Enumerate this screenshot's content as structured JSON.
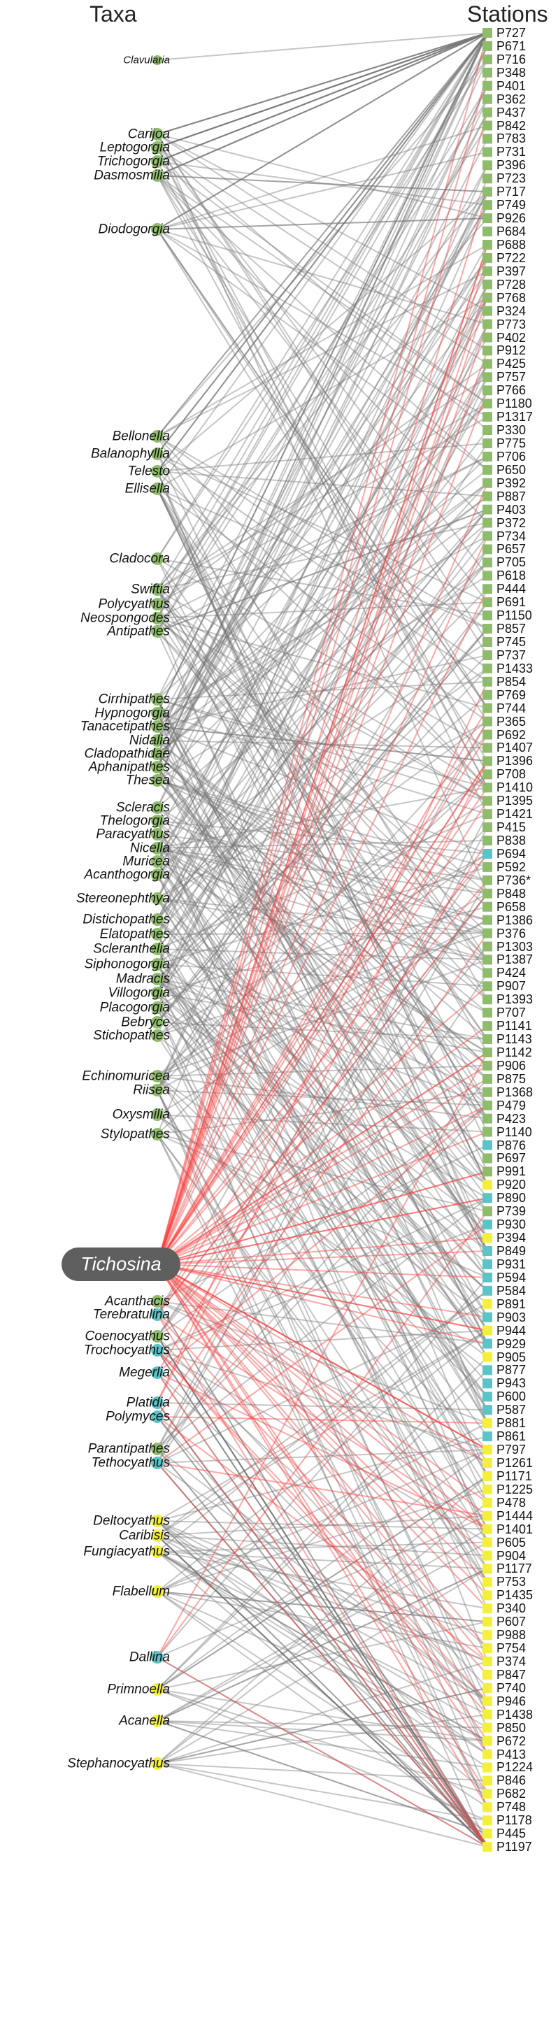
{
  "headers": {
    "taxa": "Taxa",
    "stations": "Stations"
  },
  "colors": {
    "green": "#8fbc6b",
    "cyan": "#5bc4c8",
    "yellow": "#f3f03a",
    "edge_gray": "#777777",
    "edge_red": "#ff3b3b",
    "highlight_pill": "#5f5f5f"
  },
  "highlighted_taxon": "Tichosina",
  "taxa": [
    {
      "name": "Clavularia",
      "color": "green"
    },
    {
      "name": "Carijoa",
      "color": "green"
    },
    {
      "name": "Leptogorgia",
      "color": "green"
    },
    {
      "name": "Trichogorgia",
      "color": "green"
    },
    {
      "name": "Dasmosmilia",
      "color": "green"
    },
    {
      "name": "Diodogorgia",
      "color": "green"
    },
    {
      "name": "Bellonella",
      "color": "green"
    },
    {
      "name": "Balanophyllia",
      "color": "green"
    },
    {
      "name": "Telesto",
      "color": "green"
    },
    {
      "name": "Ellisella",
      "color": "green"
    },
    {
      "name": "Cladocora",
      "color": "green"
    },
    {
      "name": "Swiftia",
      "color": "green"
    },
    {
      "name": "Polycyathus",
      "color": "green"
    },
    {
      "name": "Neospongodes",
      "color": "green"
    },
    {
      "name": "Antipathes",
      "color": "green"
    },
    {
      "name": "Cirrhipathes",
      "color": "green"
    },
    {
      "name": "Hypnogorgia",
      "color": "green"
    },
    {
      "name": "Tanacetipathes",
      "color": "green"
    },
    {
      "name": "Nidalia",
      "color": "green"
    },
    {
      "name": "Cladopathidae",
      "color": "green"
    },
    {
      "name": "Aphanipathes",
      "color": "green"
    },
    {
      "name": "Thesea",
      "color": "green"
    },
    {
      "name": "Scleracis",
      "color": "green"
    },
    {
      "name": "Thelogorgia",
      "color": "green"
    },
    {
      "name": "Paracyathus",
      "color": "green"
    },
    {
      "name": "Nicella",
      "color": "green"
    },
    {
      "name": "Muricea",
      "color": "green"
    },
    {
      "name": "Acanthogorgia",
      "color": "green"
    },
    {
      "name": "Stereonephthya",
      "color": "green"
    },
    {
      "name": "Distichopathes",
      "color": "green"
    },
    {
      "name": "Elatopathes",
      "color": "green"
    },
    {
      "name": "Scleranthelia",
      "color": "green"
    },
    {
      "name": "Siphonogorgia",
      "color": "green"
    },
    {
      "name": "Madracis",
      "color": "green"
    },
    {
      "name": "Villogorgia",
      "color": "green"
    },
    {
      "name": "Placogorgia",
      "color": "green"
    },
    {
      "name": "Bebryce",
      "color": "green"
    },
    {
      "name": "Stichopathes",
      "color": "green"
    },
    {
      "name": "Echinomuricea",
      "color": "green"
    },
    {
      "name": "Riisea",
      "color": "green"
    },
    {
      "name": "Oxysmilia",
      "color": "green"
    },
    {
      "name": "Stylopathes",
      "color": "green"
    },
    {
      "name": "Tichosina",
      "color": "cyan"
    },
    {
      "name": "Acanthacis",
      "color": "green"
    },
    {
      "name": "Terebratulina",
      "color": "cyan"
    },
    {
      "name": "Coenocyathus",
      "color": "green"
    },
    {
      "name": "Trochocyathus",
      "color": "cyan"
    },
    {
      "name": "Megerlia",
      "color": "cyan"
    },
    {
      "name": "Platidia",
      "color": "cyan"
    },
    {
      "name": "Polymyces",
      "color": "cyan"
    },
    {
      "name": "Parantipathes",
      "color": "green"
    },
    {
      "name": "Tethocyathus",
      "color": "cyan"
    },
    {
      "name": "Deltocyathus",
      "color": "yellow"
    },
    {
      "name": "Caribisis",
      "color": "yellow"
    },
    {
      "name": "Fungiacyathus",
      "color": "yellow"
    },
    {
      "name": "Flabellum",
      "color": "yellow"
    },
    {
      "name": "Dallina",
      "color": "cyan"
    },
    {
      "name": "Primnoella",
      "color": "yellow"
    },
    {
      "name": "Acanella",
      "color": "yellow"
    },
    {
      "name": "Stephanocyathus",
      "color": "yellow"
    }
  ],
  "stations": [
    {
      "name": "P727",
      "color": "green"
    },
    {
      "name": "P671",
      "color": "green"
    },
    {
      "name": "P716",
      "color": "green"
    },
    {
      "name": "P348",
      "color": "green"
    },
    {
      "name": "P401",
      "color": "green"
    },
    {
      "name": "P362",
      "color": "green"
    },
    {
      "name": "P437",
      "color": "green"
    },
    {
      "name": "P842",
      "color": "green"
    },
    {
      "name": "P783",
      "color": "green"
    },
    {
      "name": "P731",
      "color": "green"
    },
    {
      "name": "P396",
      "color": "green"
    },
    {
      "name": "P723",
      "color": "green"
    },
    {
      "name": "P717",
      "color": "green"
    },
    {
      "name": "P749",
      "color": "green"
    },
    {
      "name": "P926",
      "color": "green"
    },
    {
      "name": "P684",
      "color": "green"
    },
    {
      "name": "P688",
      "color": "green"
    },
    {
      "name": "P722",
      "color": "green"
    },
    {
      "name": "P397",
      "color": "green"
    },
    {
      "name": "P728",
      "color": "green"
    },
    {
      "name": "P768",
      "color": "green"
    },
    {
      "name": "P324",
      "color": "green"
    },
    {
      "name": "P773",
      "color": "green"
    },
    {
      "name": "P402",
      "color": "green"
    },
    {
      "name": "P912",
      "color": "green"
    },
    {
      "name": "P425",
      "color": "green"
    },
    {
      "name": "P757",
      "color": "green"
    },
    {
      "name": "P766",
      "color": "green"
    },
    {
      "name": "P1180",
      "color": "green"
    },
    {
      "name": "P1317",
      "color": "green"
    },
    {
      "name": "P330",
      "color": "green"
    },
    {
      "name": "P775",
      "color": "green"
    },
    {
      "name": "P706",
      "color": "green"
    },
    {
      "name": "P650",
      "color": "green"
    },
    {
      "name": "P392",
      "color": "green"
    },
    {
      "name": "P887",
      "color": "green"
    },
    {
      "name": "P403",
      "color": "green"
    },
    {
      "name": "P372",
      "color": "green"
    },
    {
      "name": "P734",
      "color": "green"
    },
    {
      "name": "P657",
      "color": "green"
    },
    {
      "name": "P705",
      "color": "green"
    },
    {
      "name": "P618",
      "color": "green"
    },
    {
      "name": "P444",
      "color": "green"
    },
    {
      "name": "P691",
      "color": "green"
    },
    {
      "name": "P1150",
      "color": "green"
    },
    {
      "name": "P857",
      "color": "green"
    },
    {
      "name": "P745",
      "color": "green"
    },
    {
      "name": "P737",
      "color": "green"
    },
    {
      "name": "P1433",
      "color": "green"
    },
    {
      "name": "P854",
      "color": "green"
    },
    {
      "name": "P769",
      "color": "green"
    },
    {
      "name": "P744",
      "color": "green"
    },
    {
      "name": "P365",
      "color": "green"
    },
    {
      "name": "P692",
      "color": "green"
    },
    {
      "name": "P1407",
      "color": "green"
    },
    {
      "name": "P1396",
      "color": "green"
    },
    {
      "name": "P708",
      "color": "green"
    },
    {
      "name": "P1410",
      "color": "green"
    },
    {
      "name": "P1395",
      "color": "green"
    },
    {
      "name": "P1421",
      "color": "green"
    },
    {
      "name": "P415",
      "color": "green"
    },
    {
      "name": "P838",
      "color": "green"
    },
    {
      "name": "P694",
      "color": "cyan"
    },
    {
      "name": "P592",
      "color": "green"
    },
    {
      "name": "P736*",
      "color": "green"
    },
    {
      "name": "P848",
      "color": "green"
    },
    {
      "name": "P658",
      "color": "green"
    },
    {
      "name": "P1386",
      "color": "green"
    },
    {
      "name": "P376",
      "color": "green"
    },
    {
      "name": "P1303",
      "color": "green"
    },
    {
      "name": "P1387",
      "color": "green"
    },
    {
      "name": "P424",
      "color": "green"
    },
    {
      "name": "P907",
      "color": "green"
    },
    {
      "name": "P1393",
      "color": "green"
    },
    {
      "name": "P707",
      "color": "green"
    },
    {
      "name": "P1141",
      "color": "green"
    },
    {
      "name": "P1143",
      "color": "green"
    },
    {
      "name": "P1142",
      "color": "green"
    },
    {
      "name": "P906",
      "color": "green"
    },
    {
      "name": "P875",
      "color": "green"
    },
    {
      "name": "P1368",
      "color": "green"
    },
    {
      "name": "P479",
      "color": "green"
    },
    {
      "name": "P423",
      "color": "green"
    },
    {
      "name": "P1140",
      "color": "green"
    },
    {
      "name": "P876",
      "color": "cyan"
    },
    {
      "name": "P697",
      "color": "green"
    },
    {
      "name": "P991",
      "color": "green"
    },
    {
      "name": "P920",
      "color": "yellow"
    },
    {
      "name": "P890",
      "color": "cyan"
    },
    {
      "name": "P739",
      "color": "green"
    },
    {
      "name": "P930",
      "color": "cyan"
    },
    {
      "name": "P394",
      "color": "yellow"
    },
    {
      "name": "P849",
      "color": "cyan"
    },
    {
      "name": "P931",
      "color": "cyan"
    },
    {
      "name": "P594",
      "color": "cyan"
    },
    {
      "name": "P584",
      "color": "cyan"
    },
    {
      "name": "P891",
      "color": "yellow"
    },
    {
      "name": "P903",
      "color": "cyan"
    },
    {
      "name": "P944",
      "color": "yellow"
    },
    {
      "name": "P929",
      "color": "cyan"
    },
    {
      "name": "P905",
      "color": "yellow"
    },
    {
      "name": "P877",
      "color": "cyan"
    },
    {
      "name": "P943",
      "color": "cyan"
    },
    {
      "name": "P600",
      "color": "cyan"
    },
    {
      "name": "P587",
      "color": "cyan"
    },
    {
      "name": "P881",
      "color": "yellow"
    },
    {
      "name": "P861",
      "color": "cyan"
    },
    {
      "name": "P797",
      "color": "yellow"
    },
    {
      "name": "P1261",
      "color": "yellow"
    },
    {
      "name": "P1171",
      "color": "yellow"
    },
    {
      "name": "P1225",
      "color": "yellow"
    },
    {
      "name": "P478",
      "color": "yellow"
    },
    {
      "name": "P1444",
      "color": "yellow"
    },
    {
      "name": "P1401",
      "color": "yellow"
    },
    {
      "name": "P605",
      "color": "yellow"
    },
    {
      "name": "P904",
      "color": "yellow"
    },
    {
      "name": "P1177",
      "color": "yellow"
    },
    {
      "name": "P753",
      "color": "yellow"
    },
    {
      "name": "P1435",
      "color": "yellow"
    },
    {
      "name": "P340",
      "color": "yellow"
    },
    {
      "name": "P607",
      "color": "yellow"
    },
    {
      "name": "P988",
      "color": "yellow"
    },
    {
      "name": "P754",
      "color": "yellow"
    },
    {
      "name": "P374",
      "color": "yellow"
    },
    {
      "name": "P847",
      "color": "yellow"
    },
    {
      "name": "P740",
      "color": "yellow"
    },
    {
      "name": "P946",
      "color": "yellow"
    },
    {
      "name": "P1438",
      "color": "yellow"
    },
    {
      "name": "P850",
      "color": "yellow"
    },
    {
      "name": "P672",
      "color": "yellow"
    },
    {
      "name": "P413",
      "color": "yellow"
    },
    {
      "name": "P1224",
      "color": "yellow"
    },
    {
      "name": "P846",
      "color": "yellow"
    },
    {
      "name": "P682",
      "color": "yellow"
    },
    {
      "name": "P748",
      "color": "yellow"
    },
    {
      "name": "P1178",
      "color": "yellow"
    },
    {
      "name": "P445",
      "color": "yellow"
    },
    {
      "name": "P1197",
      "color": "yellow"
    }
  ]
}
